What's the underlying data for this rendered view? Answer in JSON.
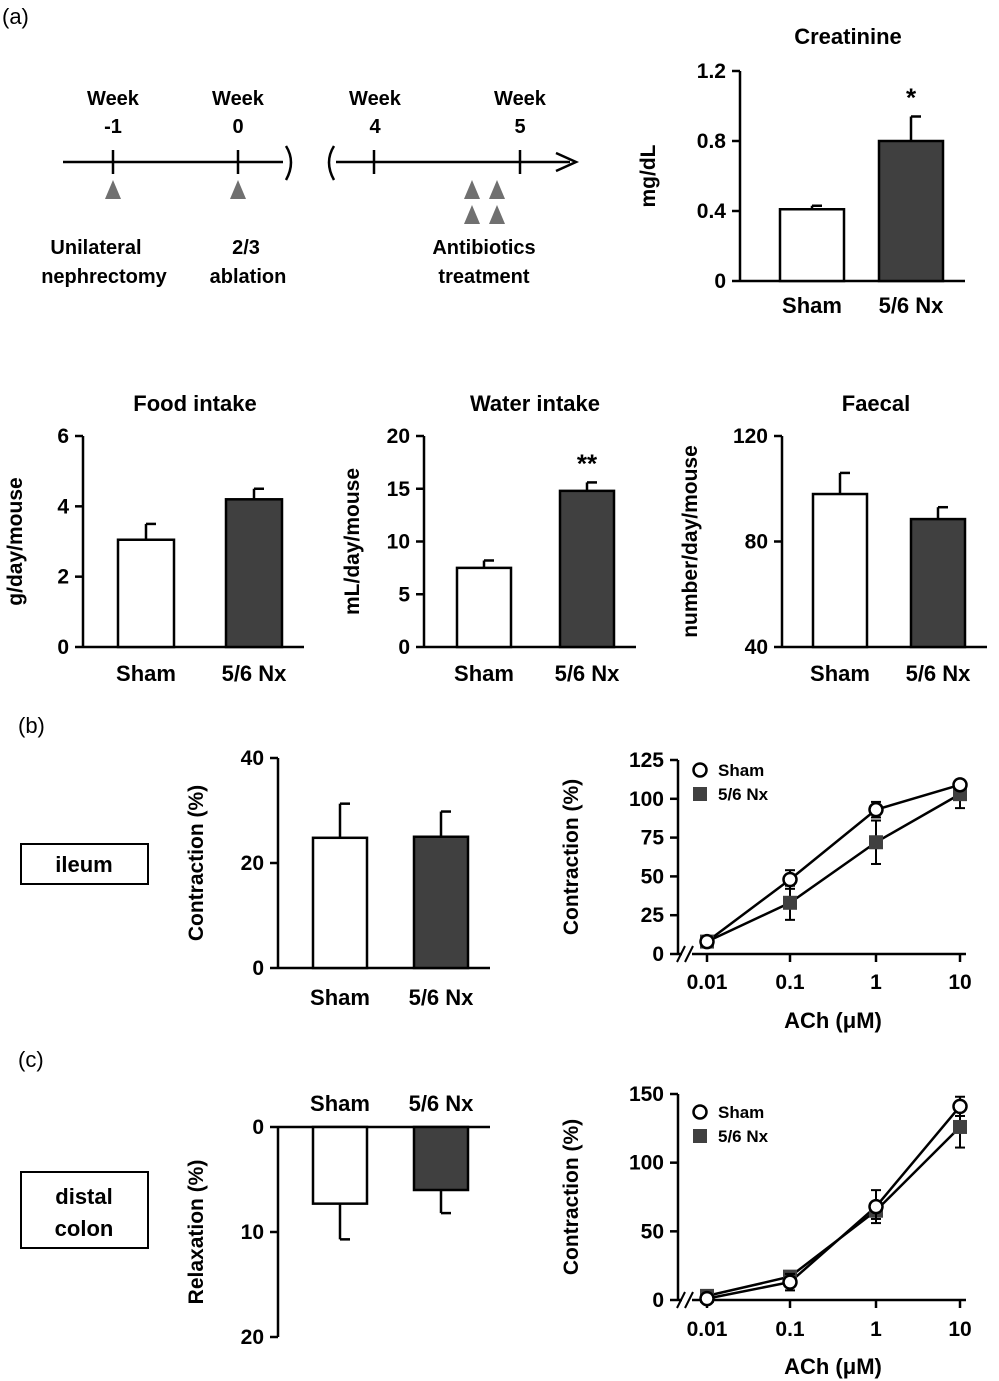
{
  "panel_labels": [
    "(a)",
    "(b)",
    "(c)"
  ],
  "timeline": {
    "weeks": [
      {
        "top": "Week",
        "bottom": "-1"
      },
      {
        "top": "Week",
        "bottom": "0"
      },
      {
        "top": "Week",
        "bottom": "4"
      },
      {
        "top": "Week",
        "bottom": "5"
      }
    ],
    "events": [
      {
        "line1": "Unilateral",
        "line2": "nephrectomy"
      },
      {
        "line1": "2/3",
        "line2": "ablation"
      },
      {
        "line1": "Antibiotics",
        "line2": "treatment"
      }
    ]
  },
  "tissue_labels": {
    "ileum": "ileum",
    "colon_line1": "distal",
    "colon_line2": "colon"
  },
  "colors": {
    "sham": "#ffffff",
    "nx": "#404040",
    "axis": "#000000",
    "marker": "#707070"
  },
  "chart_data": [
    {
      "id": "creatinine",
      "type": "bar",
      "title": "Creatinine",
      "ylabel": "mg/dL",
      "categories": [
        "Sham",
        "5/6 Nx"
      ],
      "values": [
        0.41,
        0.8
      ],
      "errors": [
        0.02,
        0.14
      ],
      "significance": [
        "",
        "*"
      ],
      "ylim": [
        0,
        1.2
      ],
      "yticks": [
        0,
        0.4,
        0.8,
        1.2
      ],
      "ytick_labels": [
        "0",
        "0.4",
        "0.8",
        "1.2"
      ]
    },
    {
      "id": "food",
      "type": "bar",
      "title": "Food intake",
      "ylabel": "g/day/mouse",
      "categories": [
        "Sham",
        "5/6 Nx"
      ],
      "values": [
        3.05,
        4.2
      ],
      "errors": [
        0.45,
        0.3
      ],
      "significance": [
        "",
        ""
      ],
      "ylim": [
        0,
        6
      ],
      "yticks": [
        0,
        2,
        4,
        6
      ],
      "ytick_labels": [
        "0",
        "2",
        "4",
        "6"
      ]
    },
    {
      "id": "water",
      "type": "bar",
      "title": "Water intake",
      "ylabel": "mL/day/mouse",
      "categories": [
        "Sham",
        "5/6 Nx"
      ],
      "values": [
        7.5,
        14.8
      ],
      "errors": [
        0.7,
        0.8
      ],
      "significance": [
        "",
        "**"
      ],
      "ylim": [
        0,
        20
      ],
      "yticks": [
        0,
        5,
        10,
        15,
        20
      ],
      "ytick_labels": [
        "0",
        "5",
        "10",
        "15",
        "20"
      ]
    },
    {
      "id": "faecal",
      "type": "bar",
      "title": "Faecal",
      "ylabel": "number/day/mouse",
      "categories": [
        "Sham",
        "5/6 Nx"
      ],
      "values": [
        98,
        88.5
      ],
      "errors": [
        8,
        4.5
      ],
      "significance": [
        "",
        ""
      ],
      "ylim": [
        40,
        120
      ],
      "yticks": [
        40,
        80,
        120
      ],
      "ytick_labels": [
        "40",
        "80",
        "120"
      ]
    },
    {
      "id": "ileum_bar",
      "type": "bar",
      "title": "",
      "ylabel": "Contraction (%)",
      "categories": [
        "Sham",
        "5/6 Nx"
      ],
      "values": [
        24.8,
        25
      ],
      "errors": [
        6.5,
        4.8
      ],
      "significance": [
        "",
        ""
      ],
      "ylim": [
        0,
        40
      ],
      "yticks": [
        0,
        20,
        40
      ],
      "ytick_labels": [
        "0",
        "20",
        "40"
      ]
    },
    {
      "id": "ileum_line",
      "type": "line",
      "title": "",
      "xlabel": "ACh (μM)",
      "ylabel": "Contraction (%)",
      "x": [
        0.01,
        0.1,
        1,
        10
      ],
      "xtick_labels": [
        "0.01",
        "0.1",
        "1",
        "10"
      ],
      "xscale": "log",
      "series": [
        {
          "name": "Sham",
          "values": [
            8,
            48,
            93,
            109
          ],
          "errors": [
            1,
            6,
            5,
            3
          ],
          "marker": "circle"
        },
        {
          "name": "5/6 Nx",
          "values": [
            8,
            33,
            72,
            103
          ],
          "errors": [
            1,
            11,
            14,
            9
          ],
          "marker": "square"
        }
      ],
      "ylim": [
        0,
        125
      ],
      "yticks": [
        0,
        25,
        50,
        75,
        100,
        125
      ],
      "ytick_labels": [
        "0",
        "25",
        "50",
        "75",
        "100",
        "125"
      ],
      "legend": "top-left"
    },
    {
      "id": "colon_bar",
      "type": "bar",
      "title": "",
      "ylabel": "Relaxation (%)",
      "categories": [
        "Sham",
        "5/6 Nx"
      ],
      "values": [
        7.3,
        6
      ],
      "errors": [
        3.4,
        2.2
      ],
      "significance": [
        "",
        ""
      ],
      "ylim": [
        0,
        20
      ],
      "yticks": [
        0,
        10,
        20
      ],
      "ytick_labels": [
        "0",
        "10",
        "20"
      ],
      "inverted": true
    },
    {
      "id": "colon_line",
      "type": "line",
      "title": "",
      "xlabel": "ACh (μM)",
      "ylabel": "Contraction (%)",
      "x": [
        0.01,
        0.1,
        1,
        10
      ],
      "xtick_labels": [
        "0.01",
        "0.1",
        "1",
        "10"
      ],
      "xscale": "log",
      "series": [
        {
          "name": "Sham",
          "values": [
            1,
            13,
            68,
            141
          ],
          "errors": [
            1,
            6,
            12,
            7
          ],
          "marker": "circle"
        },
        {
          "name": "5/6 Nx",
          "values": [
            3,
            17,
            65,
            126
          ],
          "errors": [
            2,
            4,
            6,
            15
          ],
          "marker": "square"
        }
      ],
      "ylim": [
        0,
        150
      ],
      "yticks": [
        0,
        50,
        100,
        150
      ],
      "ytick_labels": [
        "0",
        "50",
        "100",
        "150"
      ],
      "legend": "top-left"
    }
  ]
}
